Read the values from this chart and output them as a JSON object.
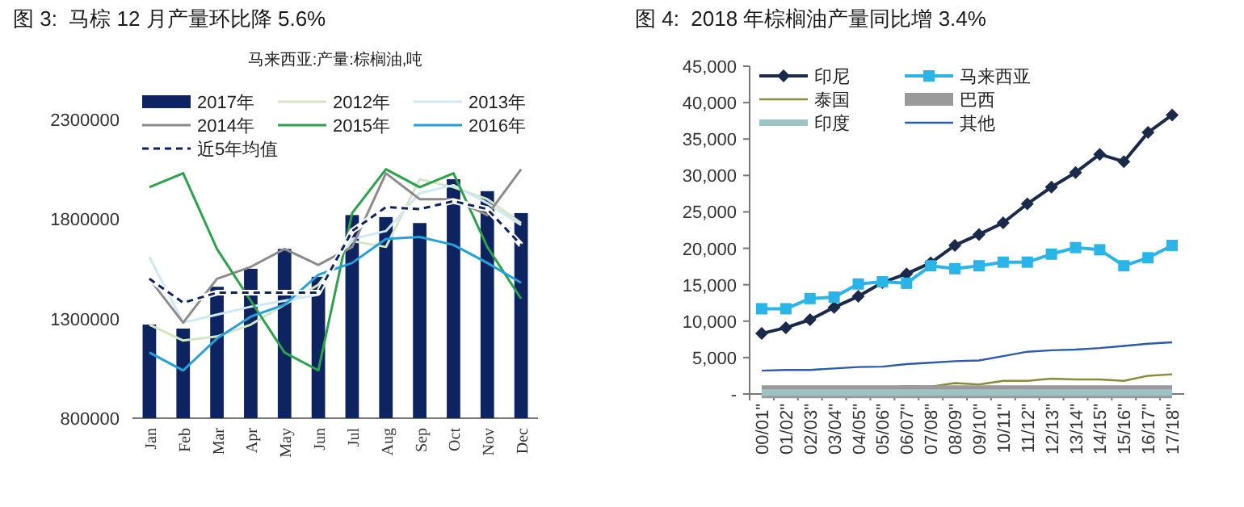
{
  "chart_data": [
    {
      "type": "bar",
      "title": "图 3:  马棕 12 月产量环比降 5.6%",
      "subtitle": "马来西亚:产量:棕榈油,吨",
      "categories": [
        "Jan",
        "Feb",
        "Mar",
        "Apr",
        "May",
        "Jun",
        "Jul",
        "Aug",
        "Sep",
        "Oct",
        "Nov",
        "Dec"
      ],
      "series": [
        {
          "name": "2017年",
          "color": "#0e2461",
          "values": [
            1270000,
            1250000,
            1460000,
            1550000,
            1650000,
            1510000,
            1820000,
            1810000,
            1780000,
            2000000,
            1940000,
            1830000
          ]
        },
        {
          "name": "2012年",
          "type": "line",
          "color": "#d4e6c4",
          "values": [
            1270000,
            1190000,
            1210000,
            1270000,
            1370000,
            1470000,
            1690000,
            1660000,
            2000000,
            1960000,
            1900000,
            1780000
          ]
        },
        {
          "name": "2013年",
          "type": "line",
          "color": "#cfe8f5",
          "values": [
            1610000,
            1280000,
            1320000,
            1360000,
            1390000,
            1420000,
            1700000,
            1740000,
            1930000,
            1970000,
            1880000,
            1770000
          ]
        },
        {
          "name": "2014年",
          "type": "line",
          "color": "#8c8c8c",
          "values": [
            1500000,
            1280000,
            1500000,
            1560000,
            1650000,
            1570000,
            1660000,
            2030000,
            1900000,
            1900000,
            1820000,
            2050000
          ]
        },
        {
          "name": "2015年",
          "type": "line",
          "color": "#2ca24a",
          "values": [
            1960000,
            2030000,
            1650000,
            1390000,
            1130000,
            1040000,
            1830000,
            2050000,
            1960000,
            2030000,
            1660000,
            1400000
          ]
        },
        {
          "name": "2016年",
          "type": "line",
          "color": "#26a0da",
          "values": [
            1130000,
            1040000,
            1200000,
            1310000,
            1370000,
            1520000,
            1580000,
            1700000,
            1710000,
            1670000,
            1580000,
            1480000
          ]
        },
        {
          "name": "近5年均值",
          "type": "line",
          "line_style": "dashed",
          "color": "#0e2461",
          "values": [
            1500000,
            1380000,
            1430000,
            1430000,
            1430000,
            1430000,
            1740000,
            1860000,
            1850000,
            1890000,
            1850000,
            1670000
          ]
        }
      ],
      "ylim": [
        800000,
        2300000
      ],
      "yticks": [
        800000,
        1300000,
        1800000,
        2300000
      ],
      "legend": "top",
      "grid": false
    },
    {
      "type": "line",
      "title": "图 4:  2018 年棕榈油产量同比增 3.4%",
      "categories": [
        "00/01\"",
        "01/02\"",
        "02/03\"",
        "03/04\"",
        "04/05\"",
        "05/06\"",
        "06/07\"",
        "07/08\"",
        "08/09\"",
        "09/10\"",
        "10/11\"",
        "11/12\"",
        "12/13\"",
        "13/14\"",
        "14/15\"",
        "15/16\"",
        "16/17\"",
        "17/18\""
      ],
      "series": [
        {
          "name": "印尼",
          "color": "#1b2a4a",
          "marker": "diamond",
          "values": [
            8300,
            9100,
            10200,
            11900,
            13400,
            15300,
            16500,
            18000,
            20400,
            21900,
            23500,
            26100,
            28400,
            30400,
            32900,
            31900,
            35900,
            38300
          ]
        },
        {
          "name": "马来西亚",
          "color": "#2bb4e8",
          "marker": "square",
          "values": [
            11700,
            11700,
            13100,
            13300,
            15100,
            15400,
            15200,
            17600,
            17200,
            17600,
            18100,
            18100,
            19200,
            20100,
            19800,
            17600,
            18700,
            20400
          ]
        },
        {
          "name": "泰国",
          "color": "#8a8a3a",
          "values": [
            500,
            700,
            700,
            800,
            800,
            800,
            1100,
            1000,
            1500,
            1300,
            1800,
            1800,
            2100,
            2000,
            2000,
            1800,
            2500,
            2700
          ]
        },
        {
          "name": "巴西",
          "color": "#9a9a9a",
          "values": [
            300,
            300,
            300,
            300,
            300,
            300,
            300,
            300,
            300,
            300,
            300,
            300,
            300,
            300,
            300,
            300,
            300,
            300
          ]
        },
        {
          "name": "印度",
          "color": "#9cc4c4",
          "values": [
            200,
            200,
            200,
            200,
            200,
            200,
            200,
            200,
            200,
            200,
            200,
            200,
            200,
            200,
            200,
            200,
            200,
            200
          ]
        },
        {
          "name": "其他",
          "color": "#2a5ca8",
          "values": [
            3200,
            3300,
            3300,
            3500,
            3700,
            3750,
            4100,
            4300,
            4500,
            4600,
            5200,
            5800,
            6000,
            6100,
            6300,
            6600,
            6900,
            7100
          ]
        }
      ],
      "ylim": [
        0,
        45000
      ],
      "yticks": [
        {
          "value": 0,
          "label": "-"
        },
        {
          "value": 5000,
          "label": "5,000"
        },
        {
          "value": 10000,
          "label": "10,000"
        },
        {
          "value": 15000,
          "label": "15,000"
        },
        {
          "value": 20000,
          "label": "20,000"
        },
        {
          "value": 25000,
          "label": "25,000"
        },
        {
          "value": 30000,
          "label": "30,000"
        },
        {
          "value": 35000,
          "label": "35,000"
        },
        {
          "value": 40000,
          "label": "40,000"
        },
        {
          "value": 45000,
          "label": "45,000"
        }
      ],
      "legend": "top left",
      "grid": false
    }
  ]
}
